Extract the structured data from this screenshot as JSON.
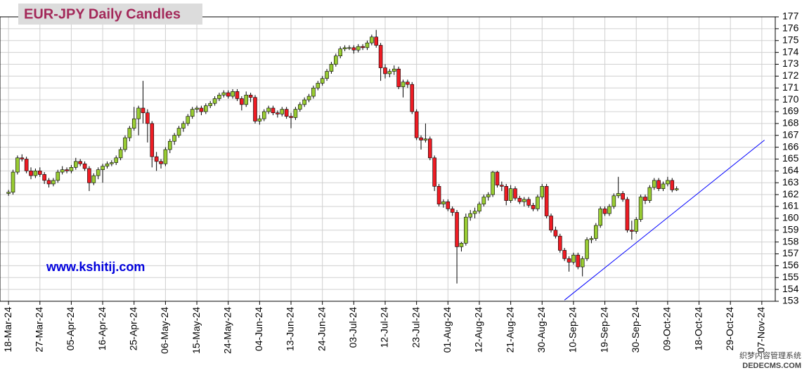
{
  "chart_data": {
    "type": "candlestick",
    "title": "EUR-JPY Daily  Candles",
    "watermark": "www.kshitij.com",
    "watermark2": "织梦内容管理系统",
    "watermark3": "DEDECMS.COM",
    "up_color": "#99cc33",
    "down_color": "#ee1c24",
    "grid": true,
    "xlim": [
      -1.9,
      171
    ],
    "ylim": [
      153,
      177
    ],
    "yticks": [
      153,
      154,
      155,
      156,
      157,
      158,
      159,
      160,
      161,
      162,
      163,
      164,
      165,
      166,
      167,
      168,
      169,
      170,
      171,
      172,
      173,
      174,
      175,
      176,
      177
    ],
    "xticks": [
      {
        "value": 0,
        "label": "18-Mar-24"
      },
      {
        "value": 7,
        "label": "27-Mar-24"
      },
      {
        "value": 14,
        "label": "05-Apr-24"
      },
      {
        "value": 21,
        "label": "16-Apr-24"
      },
      {
        "value": 28,
        "label": "25-Apr-24"
      },
      {
        "value": 35,
        "label": "06-May-24"
      },
      {
        "value": 42,
        "label": "15-May-24"
      },
      {
        "value": 49,
        "label": "24-May-24"
      },
      {
        "value": 56,
        "label": "04-Jun-24"
      },
      {
        "value": 63,
        "label": "13-Jun-24"
      },
      {
        "value": 70,
        "label": "24-Jun-24"
      },
      {
        "value": 77,
        "label": "03-Jul-24"
      },
      {
        "value": 84,
        "label": "12-Jul-24"
      },
      {
        "value": 91,
        "label": "23-Jul-24"
      },
      {
        "value": 98,
        "label": "01-Aug-24"
      },
      {
        "value": 105,
        "label": "12-Aug-24"
      },
      {
        "value": 112,
        "label": "21-Aug-24"
      },
      {
        "value": 119,
        "label": "30-Aug-24"
      },
      {
        "value": 126,
        "label": "10-Sep-24"
      },
      {
        "value": 133,
        "label": "19-Sep-24"
      },
      {
        "value": 140,
        "label": "30-Sep-24"
      },
      {
        "value": 147,
        "label": "09-Oct-24"
      },
      {
        "value": 154,
        "label": "18-Oct-24"
      },
      {
        "value": 161,
        "label": "29-Oct-24"
      },
      {
        "value": 168,
        "label": "07-Nov-24"
      }
    ],
    "trendline": {
      "x": [
        124,
        168.6
      ],
      "y": [
        153.1,
        166.6
      ],
      "color": "#0000ff"
    },
    "x": [
      0,
      1,
      2,
      3,
      4,
      5,
      6,
      7,
      8,
      9,
      10,
      11,
      12,
      13,
      14,
      15,
      16,
      17,
      18,
      19,
      20,
      21,
      22,
      23,
      24,
      25,
      26,
      27,
      28,
      29,
      30,
      31,
      32,
      33,
      34,
      35,
      36,
      37,
      38,
      39,
      40,
      41,
      42,
      43,
      44,
      45,
      46,
      47,
      48,
      49,
      50,
      51,
      52,
      53,
      54,
      55,
      56,
      57,
      58,
      59,
      60,
      61,
      62,
      63,
      64,
      65,
      66,
      67,
      68,
      69,
      70,
      71,
      72,
      73,
      74,
      75,
      76,
      77,
      78,
      79,
      80,
      81,
      82,
      83,
      84,
      85,
      86,
      87,
      88,
      89,
      90,
      91,
      92,
      93,
      94,
      95,
      96,
      97,
      98,
      99,
      100,
      101,
      102,
      103,
      104,
      105,
      106,
      107,
      108,
      109,
      110,
      111,
      112,
      113,
      114,
      115,
      116,
      117,
      118,
      119,
      120,
      121,
      122,
      123,
      124,
      125,
      126,
      127,
      128,
      129,
      130,
      131,
      132,
      133,
      134,
      135,
      136,
      137,
      138,
      139,
      140,
      141,
      142,
      143,
      144,
      145,
      146,
      147,
      148,
      149
    ],
    "ohlc": [
      [
        162.1,
        162.4,
        161.9,
        162.2
      ],
      [
        162.2,
        164.1,
        162.0,
        163.9
      ],
      [
        163.9,
        165.3,
        163.7,
        165.1
      ],
      [
        165.1,
        165.4,
        164.8,
        165.0
      ],
      [
        165.0,
        165.2,
        163.8,
        164.0
      ],
      [
        164.0,
        164.3,
        163.3,
        163.6
      ],
      [
        163.6,
        164.2,
        163.4,
        164.0
      ],
      [
        164.0,
        164.3,
        163.5,
        163.7
      ],
      [
        163.7,
        163.9,
        162.9,
        163.2
      ],
      [
        163.2,
        163.4,
        162.6,
        162.9
      ],
      [
        162.9,
        163.4,
        162.7,
        163.2
      ],
      [
        163.2,
        164.1,
        163.0,
        163.9
      ],
      [
        163.9,
        164.4,
        163.7,
        164.1
      ],
      [
        164.1,
        164.3,
        163.8,
        164.0
      ],
      [
        164.0,
        164.5,
        163.8,
        164.3
      ],
      [
        164.3,
        165.1,
        164.1,
        164.8
      ],
      [
        164.8,
        165.0,
        164.4,
        164.6
      ],
      [
        164.6,
        164.8,
        164.0,
        164.2
      ],
      [
        164.2,
        164.4,
        162.3,
        163.0
      ],
      [
        163.0,
        163.8,
        162.8,
        163.6
      ],
      [
        163.6,
        164.3,
        163.3,
        164.1
      ],
      [
        164.1,
        164.6,
        163.0,
        164.4
      ],
      [
        164.4,
        164.8,
        164.2,
        164.6
      ],
      [
        164.6,
        164.9,
        164.4,
        164.7
      ],
      [
        164.7,
        165.3,
        164.5,
        165.1
      ],
      [
        165.1,
        166.0,
        164.9,
        165.8
      ],
      [
        165.8,
        167.0,
        165.6,
        166.8
      ],
      [
        166.8,
        167.8,
        166.5,
        167.6
      ],
      [
        167.6,
        169.4,
        167.4,
        168.4
      ],
      [
        168.4,
        169.5,
        167.0,
        169.3
      ],
      [
        169.3,
        171.6,
        168.0,
        168.9
      ],
      [
        168.9,
        169.2,
        166.4,
        168.0
      ],
      [
        168.0,
        168.2,
        164.3,
        165.2
      ],
      [
        165.2,
        165.6,
        164.0,
        164.8
      ],
      [
        164.8,
        165.0,
        164.2,
        164.6
      ],
      [
        164.6,
        166.0,
        164.4,
        165.8
      ],
      [
        165.8,
        166.7,
        165.5,
        166.5
      ],
      [
        166.5,
        167.2,
        166.2,
        167.0
      ],
      [
        167.0,
        167.8,
        166.8,
        167.6
      ],
      [
        167.6,
        168.2,
        167.3,
        168.0
      ],
      [
        168.0,
        168.8,
        167.8,
        168.6
      ],
      [
        168.6,
        169.4,
        168.4,
        169.2
      ],
      [
        169.2,
        169.5,
        168.9,
        169.3
      ],
      [
        169.3,
        169.5,
        168.7,
        169.0
      ],
      [
        169.0,
        169.7,
        168.8,
        169.5
      ],
      [
        169.5,
        169.9,
        169.3,
        169.7
      ],
      [
        169.7,
        170.3,
        169.5,
        170.1
      ],
      [
        170.1,
        170.6,
        169.9,
        170.4
      ],
      [
        170.4,
        170.8,
        170.2,
        170.6
      ],
      [
        170.6,
        170.8,
        170.1,
        170.3
      ],
      [
        170.3,
        170.9,
        170.1,
        170.7
      ],
      [
        170.7,
        170.9,
        169.9,
        170.1
      ],
      [
        170.1,
        170.3,
        169.1,
        169.6
      ],
      [
        169.6,
        170.7,
        169.4,
        170.4
      ],
      [
        170.4,
        170.6,
        169.8,
        170.2
      ],
      [
        170.2,
        170.4,
        168.0,
        168.2
      ],
      [
        168.2,
        168.7,
        167.9,
        168.4
      ],
      [
        168.4,
        169.2,
        168.2,
        169.0
      ],
      [
        169.0,
        169.5,
        168.8,
        169.3
      ],
      [
        169.3,
        169.5,
        168.7,
        168.9
      ],
      [
        168.9,
        169.1,
        168.5,
        168.8
      ],
      [
        168.8,
        169.4,
        168.6,
        169.2
      ],
      [
        169.2,
        169.4,
        168.4,
        168.6
      ],
      [
        168.6,
        168.9,
        167.6,
        168.5
      ],
      [
        168.5,
        169.4,
        168.3,
        169.2
      ],
      [
        169.2,
        169.8,
        169.0,
        169.6
      ],
      [
        169.6,
        170.2,
        169.4,
        170.0
      ],
      [
        170.0,
        170.5,
        169.8,
        170.3
      ],
      [
        170.3,
        171.2,
        170.1,
        171.0
      ],
      [
        171.0,
        171.6,
        170.8,
        171.4
      ],
      [
        171.4,
        172.0,
        171.2,
        171.8
      ],
      [
        171.8,
        172.6,
        171.6,
        172.4
      ],
      [
        172.4,
        173.2,
        172.2,
        173.0
      ],
      [
        173.0,
        173.9,
        172.8,
        173.7
      ],
      [
        173.7,
        174.5,
        173.5,
        174.3
      ],
      [
        174.3,
        174.6,
        174.1,
        174.4
      ],
      [
        174.4,
        174.6,
        174.2,
        174.4
      ],
      [
        174.4,
        174.6,
        173.9,
        174.2
      ],
      [
        174.2,
        174.7,
        174.0,
        174.5
      ],
      [
        174.5,
        174.7,
        174.2,
        174.4
      ],
      [
        174.4,
        175.0,
        174.2,
        174.8
      ],
      [
        174.8,
        175.5,
        174.6,
        175.3
      ],
      [
        175.3,
        175.9,
        174.4,
        174.6
      ],
      [
        174.6,
        174.8,
        171.6,
        172.7
      ],
      [
        172.7,
        173.0,
        171.8,
        172.2
      ],
      [
        172.2,
        172.6,
        171.9,
        172.4
      ],
      [
        172.4,
        172.9,
        172.1,
        172.6
      ],
      [
        172.6,
        172.8,
        170.9,
        171.1
      ],
      [
        171.1,
        171.7,
        170.2,
        171.5
      ],
      [
        171.5,
        171.7,
        171.0,
        171.3
      ],
      [
        171.3,
        171.5,
        168.8,
        169.0
      ],
      [
        169.0,
        169.2,
        166.6,
        166.8
      ],
      [
        166.8,
        167.0,
        165.8,
        166.6
      ],
      [
        166.6,
        168.0,
        166.4,
        166.7
      ],
      [
        166.7,
        166.9,
        164.9,
        165.1
      ],
      [
        165.1,
        165.3,
        162.3,
        162.7
      ],
      [
        162.7,
        162.9,
        161.0,
        161.2
      ],
      [
        161.2,
        161.6,
        160.9,
        161.4
      ],
      [
        161.4,
        161.6,
        160.6,
        160.8
      ],
      [
        160.8,
        161.0,
        160.2,
        160.5
      ],
      [
        160.5,
        160.7,
        154.5,
        157.6
      ],
      [
        157.6,
        158.0,
        157.2,
        157.9
      ],
      [
        157.9,
        160.4,
        157.7,
        160.1
      ],
      [
        160.1,
        160.7,
        159.8,
        160.4
      ],
      [
        160.4,
        160.9,
        160.0,
        160.6
      ],
      [
        160.6,
        161.4,
        160.4,
        161.2
      ],
      [
        161.2,
        162.0,
        161.0,
        161.8
      ],
      [
        161.8,
        162.2,
        161.5,
        162.0
      ],
      [
        162.0,
        164.0,
        161.8,
        163.9
      ],
      [
        163.9,
        164.0,
        162.6,
        162.8
      ],
      [
        162.8,
        163.1,
        162.3,
        162.7
      ],
      [
        162.7,
        162.9,
        161.1,
        161.5
      ],
      [
        161.5,
        162.8,
        161.3,
        162.5
      ],
      [
        162.5,
        162.7,
        161.5,
        161.7
      ],
      [
        161.7,
        161.9,
        161.2,
        161.4
      ],
      [
        161.4,
        161.8,
        161.0,
        161.6
      ],
      [
        161.6,
        161.8,
        160.9,
        161.1
      ],
      [
        161.1,
        161.3,
        160.6,
        160.8
      ],
      [
        160.8,
        162.0,
        160.6,
        161.8
      ],
      [
        161.8,
        162.9,
        161.6,
        162.7
      ],
      [
        162.7,
        162.9,
        160.0,
        160.2
      ],
      [
        160.2,
        160.4,
        158.8,
        159.0
      ],
      [
        159.0,
        159.3,
        158.3,
        158.5
      ],
      [
        158.5,
        158.7,
        157.1,
        157.3
      ],
      [
        157.3,
        157.5,
        156.4,
        156.6
      ],
      [
        156.6,
        156.8,
        155.5,
        156.3
      ],
      [
        156.3,
        157.1,
        156.1,
        156.9
      ],
      [
        156.9,
        157.1,
        155.7,
        155.9
      ],
      [
        155.9,
        156.8,
        155.1,
        156.6
      ],
      [
        156.6,
        158.4,
        156.4,
        158.2
      ],
      [
        158.2,
        158.5,
        157.9,
        158.3
      ],
      [
        158.3,
        159.6,
        158.1,
        159.4
      ],
      [
        159.4,
        161.0,
        159.2,
        160.8
      ],
      [
        160.8,
        161.0,
        160.2,
        160.4
      ],
      [
        160.4,
        161.2,
        160.2,
        161.0
      ],
      [
        161.0,
        162.1,
        160.8,
        161.9
      ],
      [
        161.9,
        163.5,
        161.7,
        162.1
      ],
      [
        162.1,
        162.3,
        161.4,
        161.6
      ],
      [
        161.6,
        161.8,
        158.8,
        159.0
      ],
      [
        159.0,
        159.8,
        158.2,
        158.9
      ],
      [
        158.9,
        160.1,
        158.7,
        159.9
      ],
      [
        159.9,
        162.0,
        159.7,
        161.8
      ],
      [
        161.8,
        162.0,
        161.2,
        161.5
      ],
      [
        161.5,
        162.8,
        161.3,
        162.6
      ],
      [
        162.6,
        163.4,
        162.4,
        163.2
      ],
      [
        163.2,
        163.4,
        162.3,
        162.5
      ],
      [
        162.5,
        163.1,
        162.3,
        162.9
      ],
      [
        162.9,
        163.5,
        162.7,
        163.2
      ],
      [
        163.2,
        163.4,
        162.2,
        162.4
      ],
      [
        162.4,
        162.7,
        162.3,
        162.5
      ]
    ]
  }
}
